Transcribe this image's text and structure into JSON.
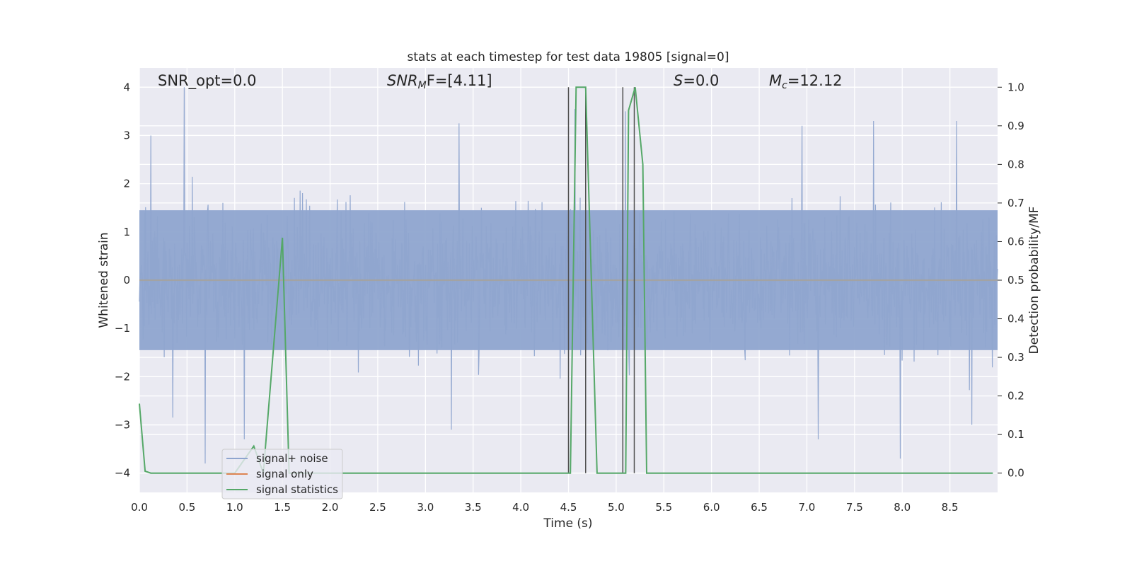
{
  "chart_data": {
    "type": "line",
    "title": "stats at each timestep for test data 19805 [signal=0]",
    "xlabel": "Time (s)",
    "ylabel_left": "Whitened strain",
    "ylabel_right": "Detection probability/MF",
    "xlim": [
      0.0,
      9.0
    ],
    "ylim_left": [
      -4.4,
      4.4
    ],
    "ylim_right": [
      -0.05,
      1.05
    ],
    "xticks": [
      "0.0",
      "0.5",
      "1.0",
      "1.5",
      "2.0",
      "2.5",
      "3.0",
      "3.5",
      "4.0",
      "4.5",
      "5.0",
      "5.5",
      "6.0",
      "6.5",
      "7.0",
      "7.5",
      "8.0",
      "8.5"
    ],
    "yticks_left": [
      "−4",
      "−3",
      "−2",
      "−1",
      "0",
      "1",
      "2",
      "3",
      "4"
    ],
    "yticks_right": [
      "0.0",
      "0.1",
      "0.2",
      "0.3",
      "0.4",
      "0.5",
      "0.6",
      "0.7",
      "0.8",
      "0.9",
      "1.0"
    ],
    "grid": true,
    "legend_position": "lower-left",
    "annotations": {
      "snr_opt": "SNR_opt=0.0",
      "snr_mf_sym": "SNR",
      "snr_mf_sub": "M",
      "snr_mf_rest": "F=[4.11]",
      "s_sym": "S",
      "s_rest": "=0.0",
      "mc_sym": "M",
      "mc_sub": "c",
      "mc_rest": "=12.12"
    },
    "series": [
      {
        "name": "signal+ noise",
        "color": "#8fa5cf",
        "description_values": "whitened noise, approx. Gaussian, range about -3.8 to 4.0",
        "peaks_high": [
          [
            0.47,
            4.0
          ],
          [
            0.12,
            3.0
          ],
          [
            3.35,
            3.25
          ],
          [
            4.57,
            3.55
          ],
          [
            5.1,
            3.5
          ],
          [
            8.57,
            3.3
          ],
          [
            6.95,
            3.2
          ],
          [
            7.7,
            3.3
          ]
        ],
        "peaks_low": [
          [
            0.69,
            -3.8
          ],
          [
            0.35,
            -2.85
          ],
          [
            1.1,
            -3.3
          ],
          [
            7.12,
            -3.3
          ],
          [
            7.98,
            -3.7
          ],
          [
            8.73,
            -3.0
          ],
          [
            3.27,
            -3.1
          ]
        ]
      },
      {
        "name": "signal only",
        "color": "#dd8452",
        "values_note": "zero everywhere",
        "x": [
          0.0,
          9.0
        ],
        "y": [
          0.0,
          0.0
        ]
      },
      {
        "name": "signal statistics",
        "color": "#55a868",
        "axis": "right",
        "x": [
          0.0,
          0.06,
          0.12,
          1.0,
          1.2,
          1.3,
          1.5,
          1.57,
          1.7,
          4.49,
          4.52,
          4.58,
          4.68,
          4.8,
          5.05,
          5.1,
          5.13,
          5.2,
          5.28,
          5.32,
          5.38,
          8.95
        ],
        "y": [
          0.18,
          0.005,
          0.0,
          0.0,
          0.07,
          0.0,
          0.61,
          0.0,
          0.0,
          0.0,
          0.0,
          1.0,
          1.0,
          0.0,
          0.0,
          0.0,
          0.94,
          1.0,
          0.8,
          0.0,
          0.0,
          0.0
        ]
      }
    ],
    "vlines": [
      {
        "x": 4.5,
        "color": "#4d4d4d"
      },
      {
        "x": 4.68,
        "color": "#4d4d4d"
      },
      {
        "x": 5.07,
        "color": "#4d4d4d"
      },
      {
        "x": 5.19,
        "color": "#4d4d4d"
      }
    ],
    "colors": {
      "axes_bg": "#eaeaf2",
      "grid": "#ffffff",
      "noise_band": "#8fa5cf",
      "text": "#262626"
    }
  }
}
